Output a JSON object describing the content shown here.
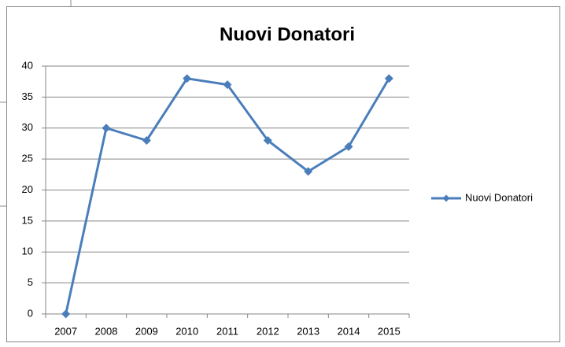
{
  "chart_data": {
    "type": "line",
    "title": "Nuovi Donatori",
    "categories": [
      "2007",
      "2008",
      "2009",
      "2010",
      "2011",
      "2012",
      "2013",
      "2014",
      "2015"
    ],
    "series": [
      {
        "name": "Nuovi Donatori",
        "color": "#4a7ebb",
        "values": [
          0,
          30,
          28,
          38,
          37,
          28,
          23,
          27,
          38
        ]
      }
    ],
    "ylim": [
      0,
      40
    ],
    "yticks": [
      0,
      5,
      10,
      15,
      20,
      25,
      30,
      35,
      40
    ],
    "grid": true,
    "legend": "right"
  }
}
